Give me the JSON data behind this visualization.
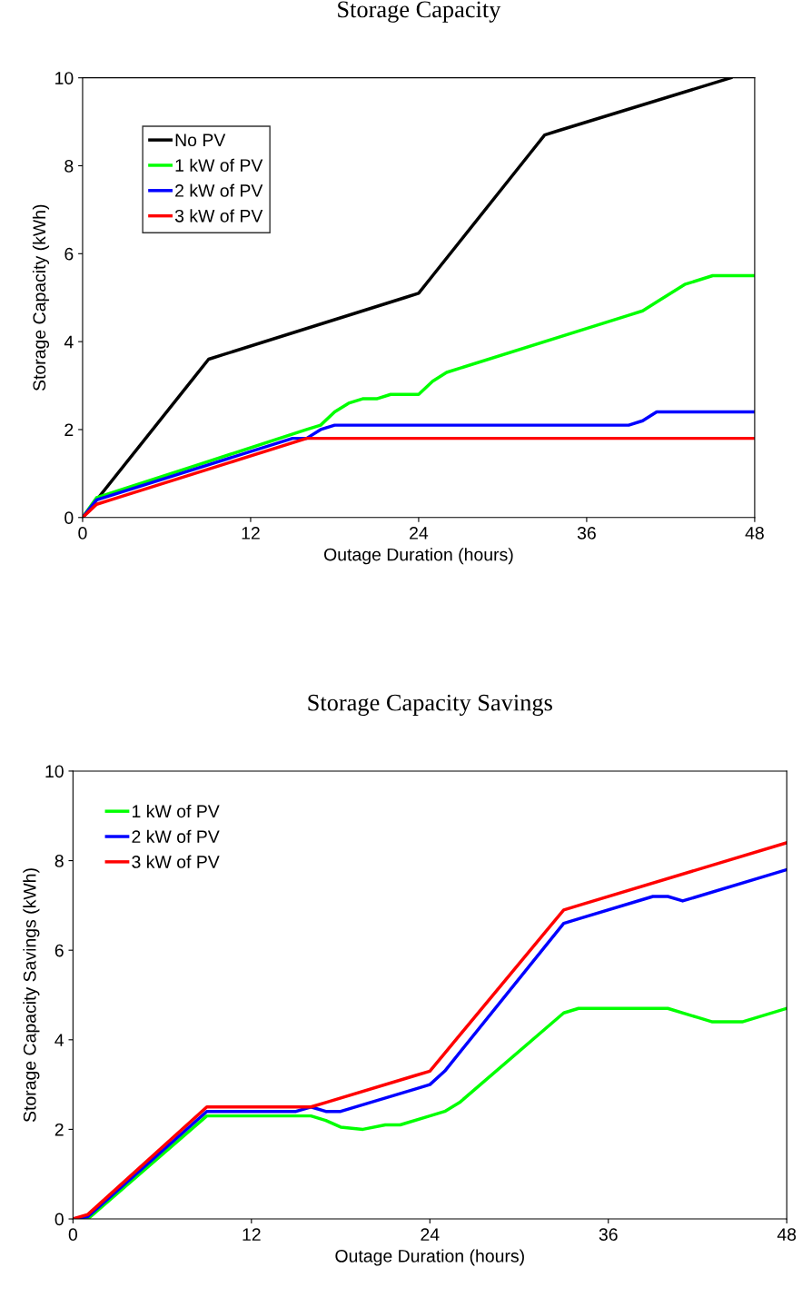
{
  "chart_data": [
    {
      "type": "line",
      "title": "Storage Capacity",
      "xlabel": "Outage Duration (hours)",
      "ylabel": "Storage Capacity (kWh)",
      "xlim": [
        0,
        48
      ],
      "xticks": [
        0,
        12,
        24,
        36,
        48
      ],
      "ylim": [
        0,
        10
      ],
      "yticks": [
        0,
        2,
        4,
        6,
        8,
        10
      ],
      "grid": false,
      "legend": "top left",
      "marker": "none",
      "line_style": "solid",
      "series": [
        {
          "name": "No PV",
          "color": "#000000",
          "x": [
            0,
            8,
            9,
            10,
            23,
            24,
            25,
            32,
            33,
            34,
            46.3
          ],
          "values": [
            0,
            3.2,
            3.6,
            3.7,
            5.0,
            5.1,
            5.5,
            8.3,
            8.7,
            8.8,
            10.0
          ]
        },
        {
          "name": "1 kW of PV",
          "color": "#00ff00",
          "x": [
            0,
            1,
            16,
            17,
            18,
            19,
            20,
            21,
            22,
            23,
            24,
            25,
            26,
            27,
            39,
            40,
            41,
            43,
            45,
            48
          ],
          "values": [
            0,
            0.45,
            2.0,
            2.1,
            2.4,
            2.6,
            2.7,
            2.7,
            2.8,
            2.8,
            2.8,
            3.1,
            3.3,
            3.4,
            4.6,
            4.7,
            4.9,
            5.3,
            5.5,
            5.5
          ]
        },
        {
          "name": "2 kW of PV",
          "color": "#0000ff",
          "x": [
            0,
            1,
            15,
            16,
            17,
            18,
            39,
            40,
            41,
            48
          ],
          "values": [
            0,
            0.4,
            1.8,
            1.8,
            2.0,
            2.1,
            2.1,
            2.2,
            2.4,
            2.4
          ]
        },
        {
          "name": "3 kW of PV",
          "color": "#ff0000",
          "x": [
            0,
            1,
            2,
            16,
            48
          ],
          "values": [
            0,
            0.3,
            0.4,
            1.8,
            1.8
          ]
        }
      ]
    },
    {
      "type": "line",
      "title": "Storage Capacity Savings",
      "xlabel": "Outage Duration (hours)",
      "ylabel": "Storage Capacity Savings (kWh)",
      "xlim": [
        0,
        48
      ],
      "xticks": [
        0,
        12,
        24,
        36,
        48
      ],
      "ylim": [
        0,
        10
      ],
      "yticks": [
        0,
        2,
        4,
        6,
        8,
        10
      ],
      "grid": false,
      "legend": "top left",
      "marker": "none",
      "line_style": "solid",
      "series": [
        {
          "name": "1 kW of PV",
          "color": "#00ff00",
          "x": [
            0,
            1,
            9,
            10,
            16,
            17,
            18,
            19.5,
            21,
            22,
            24,
            25,
            26,
            33,
            34,
            40,
            42,
            43,
            45,
            48
          ],
          "values": [
            0,
            0,
            2.3,
            2.3,
            2.3,
            2.2,
            2.05,
            2.0,
            2.1,
            2.1,
            2.3,
            2.4,
            2.6,
            4.6,
            4.7,
            4.7,
            4.5,
            4.4,
            4.4,
            4.7
          ]
        },
        {
          "name": "2 kW of PV",
          "color": "#0000ff",
          "x": [
            0,
            1,
            9,
            10,
            15,
            16,
            17,
            18,
            23,
            24,
            25,
            33,
            34,
            39,
            40,
            41,
            48
          ],
          "values": [
            0,
            0.05,
            2.4,
            2.4,
            2.4,
            2.5,
            2.4,
            2.4,
            2.9,
            3.0,
            3.3,
            6.6,
            6.7,
            7.2,
            7.2,
            7.1,
            7.8
          ]
        },
        {
          "name": "3 kW of PV",
          "color": "#ff0000",
          "x": [
            0,
            1,
            9,
            16,
            17,
            23,
            24,
            25,
            33,
            34,
            48
          ],
          "values": [
            0,
            0.1,
            2.5,
            2.5,
            2.6,
            3.2,
            3.3,
            3.7,
            6.9,
            7.0,
            8.4
          ]
        }
      ]
    }
  ]
}
